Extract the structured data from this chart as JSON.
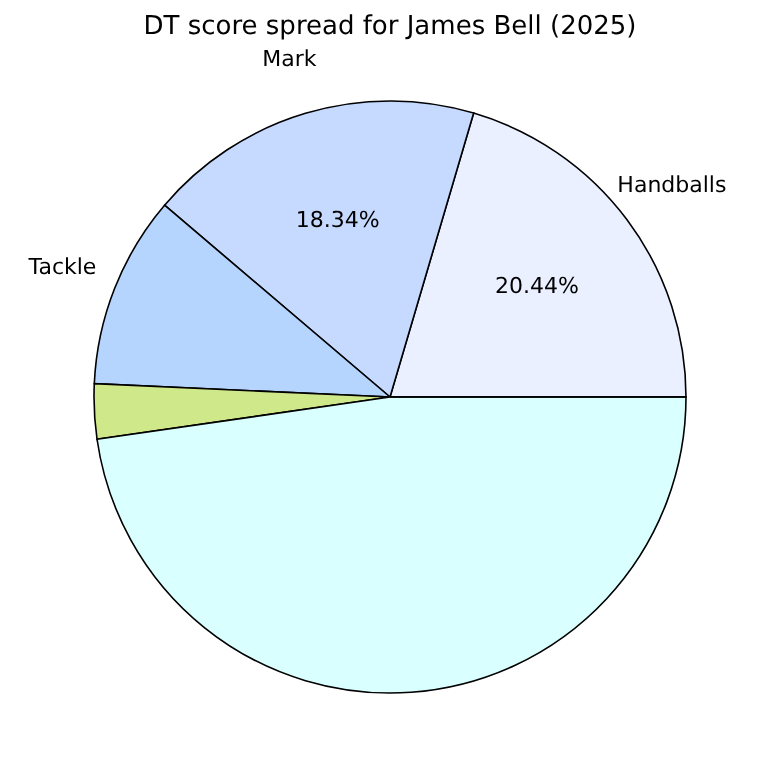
{
  "chart_data": {
    "type": "pie",
    "title": "DT score spread for James Bell (2025)",
    "categories": [
      "Handballs",
      "Mark",
      "Tackle",
      null,
      null,
      null
    ],
    "values": [
      20.44,
      18.34,
      10.5,
      3.0,
      47.72,
      0
    ],
    "colors": [
      "#eaf0ff",
      "#c6d9ff",
      "#b5d5ff",
      "#cfe88a",
      "#d9ffff",
      "#eaf0ff"
    ],
    "value_labels": [
      "20.44%",
      "18.34%",
      null,
      null,
      null,
      null
    ],
    "legend": false
  }
}
